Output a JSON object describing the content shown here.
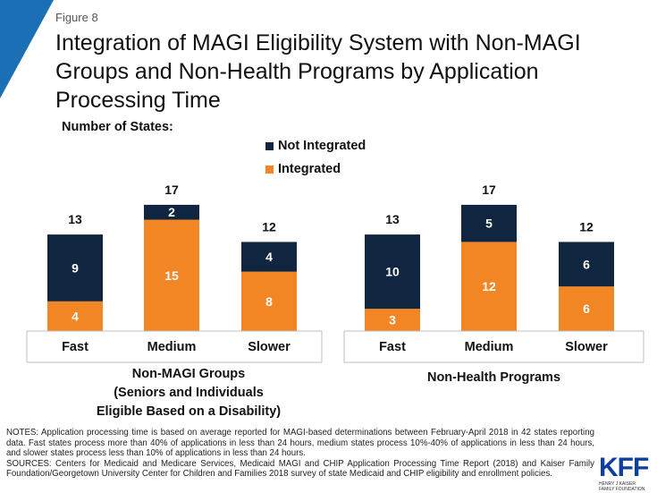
{
  "figure_label": "Figure 8",
  "title": "Integration of MAGI Eligibility System with Non-MAGI Groups and Non-Health Programs by Application Processing Time",
  "subtitle": "Number of States:",
  "colors": {
    "not_integrated": "#0f2540",
    "integrated": "#f28625",
    "accent": "#1a6fb5",
    "axis": "#bfbfbf"
  },
  "legend": {
    "not_integrated": "Not Integrated",
    "integrated": "Integrated"
  },
  "chart_data": [
    {
      "type": "bar",
      "stacked": true,
      "title": "Non-MAGI Groups (Seniors and Individuals Eligible Based on a Disability)",
      "title_lines": [
        "Non-MAGI Groups",
        "(Seniors and Individuals",
        "Eligible Based on a Disability)"
      ],
      "categories": [
        "Fast",
        "Medium",
        "Slower"
      ],
      "series": [
        {
          "name": "Integrated",
          "values": [
            4,
            15,
            8
          ]
        },
        {
          "name": "Not Integrated",
          "values": [
            9,
            2,
            4
          ]
        }
      ],
      "totals": [
        13,
        17,
        12
      ],
      "ylim": [
        0,
        17
      ]
    },
    {
      "type": "bar",
      "stacked": true,
      "title": "Non-Health Programs",
      "title_lines": [
        "Non-Health Programs"
      ],
      "categories": [
        "Fast",
        "Medium",
        "Slower"
      ],
      "series": [
        {
          "name": "Integrated",
          "values": [
            3,
            12,
            6
          ]
        },
        {
          "name": "Not Integrated",
          "values": [
            10,
            5,
            6
          ]
        }
      ],
      "totals": [
        13,
        17,
        12
      ],
      "ylim": [
        0,
        17
      ]
    }
  ],
  "notes": {
    "notes": "NOTES: Application processing time is based on average reported for MAGI-based determinations between February-April 2018 in 42 states reporting data. Fast states process more than 40% of applications in less than 24 hours, medium states process 10%-40% of applications in less than 24 hours, and slower states process less than 10% of applications in less than 24 hours.",
    "sources": "SOURCES: Centers for Medicaid and Medicare Services, Medicaid MAGI and CHIP Application Processing Time Report (2018) and Kaiser Family Foundation/Georgetown University Center for Children and Families 2018 survey of state Medicaid and CHIP eligibility and enrollment policies."
  },
  "logo": {
    "text": "KFF",
    "sub": "HENRY J KAISER FAMILY FOUNDATION"
  }
}
